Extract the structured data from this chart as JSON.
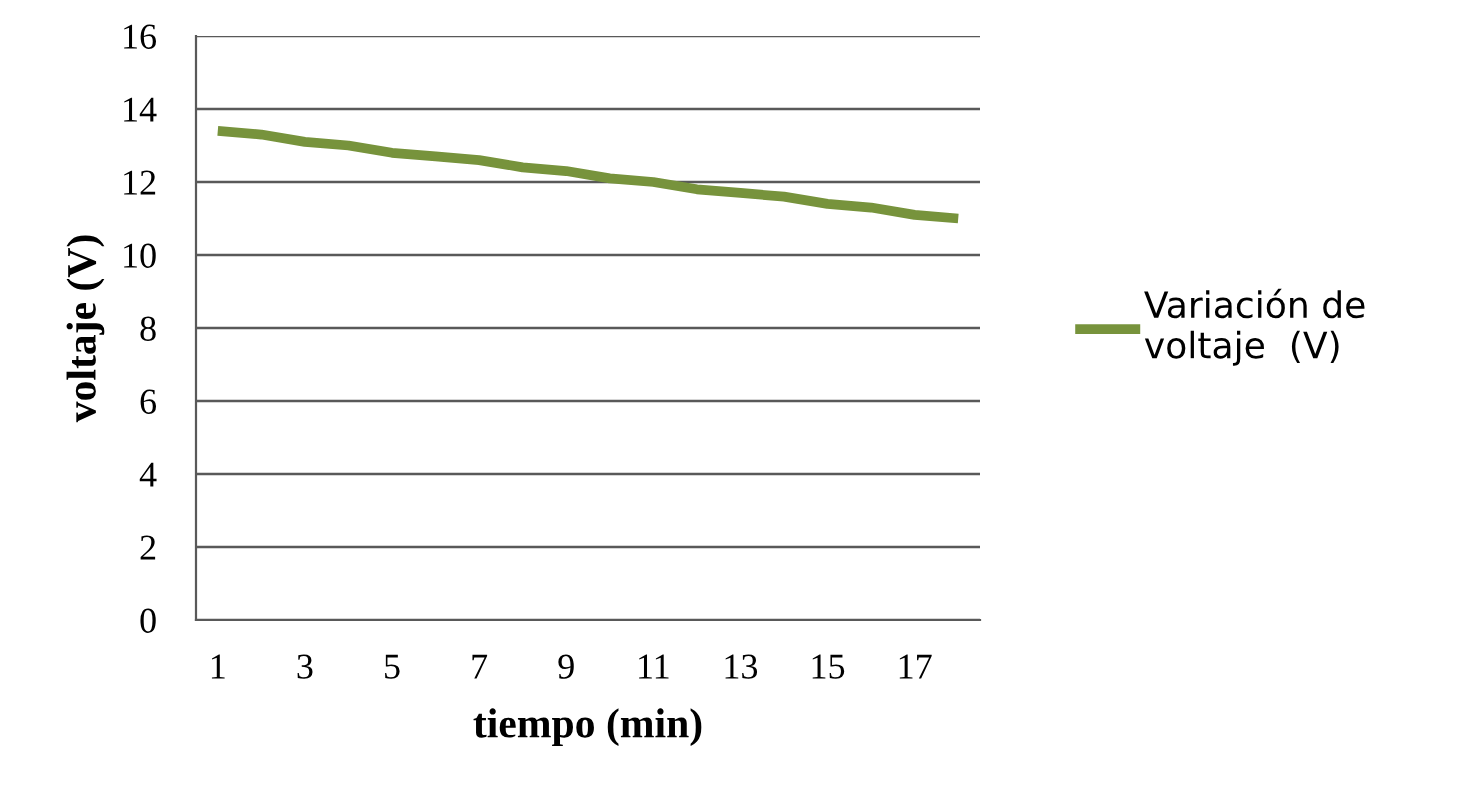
{
  "chart_data": {
    "type": "line",
    "xlabel": "tiempo (min)",
    "ylabel": "voltaje (V)",
    "categories": [
      "1",
      null,
      "3",
      null,
      "5",
      null,
      "7",
      null,
      "9",
      null,
      "11",
      null,
      "13",
      null,
      "15",
      null,
      "17",
      null
    ],
    "series": [
      {
        "name": "Variación de\nvoltaje  (V)",
        "color": "#77933c",
        "values": [
          13.4,
          13.3,
          13.1,
          13.0,
          12.8,
          12.7,
          12.6,
          12.4,
          12.3,
          12.1,
          12.0,
          11.8,
          11.7,
          11.6,
          11.4,
          11.3,
          11.1,
          11.0
        ]
      }
    ],
    "ylim": [
      0,
      16
    ],
    "yticks": [
      0,
      2,
      4,
      6,
      8,
      10,
      12,
      14,
      16
    ],
    "grid": "y",
    "legend": "right",
    "marker": "none",
    "line_style": "solid"
  }
}
